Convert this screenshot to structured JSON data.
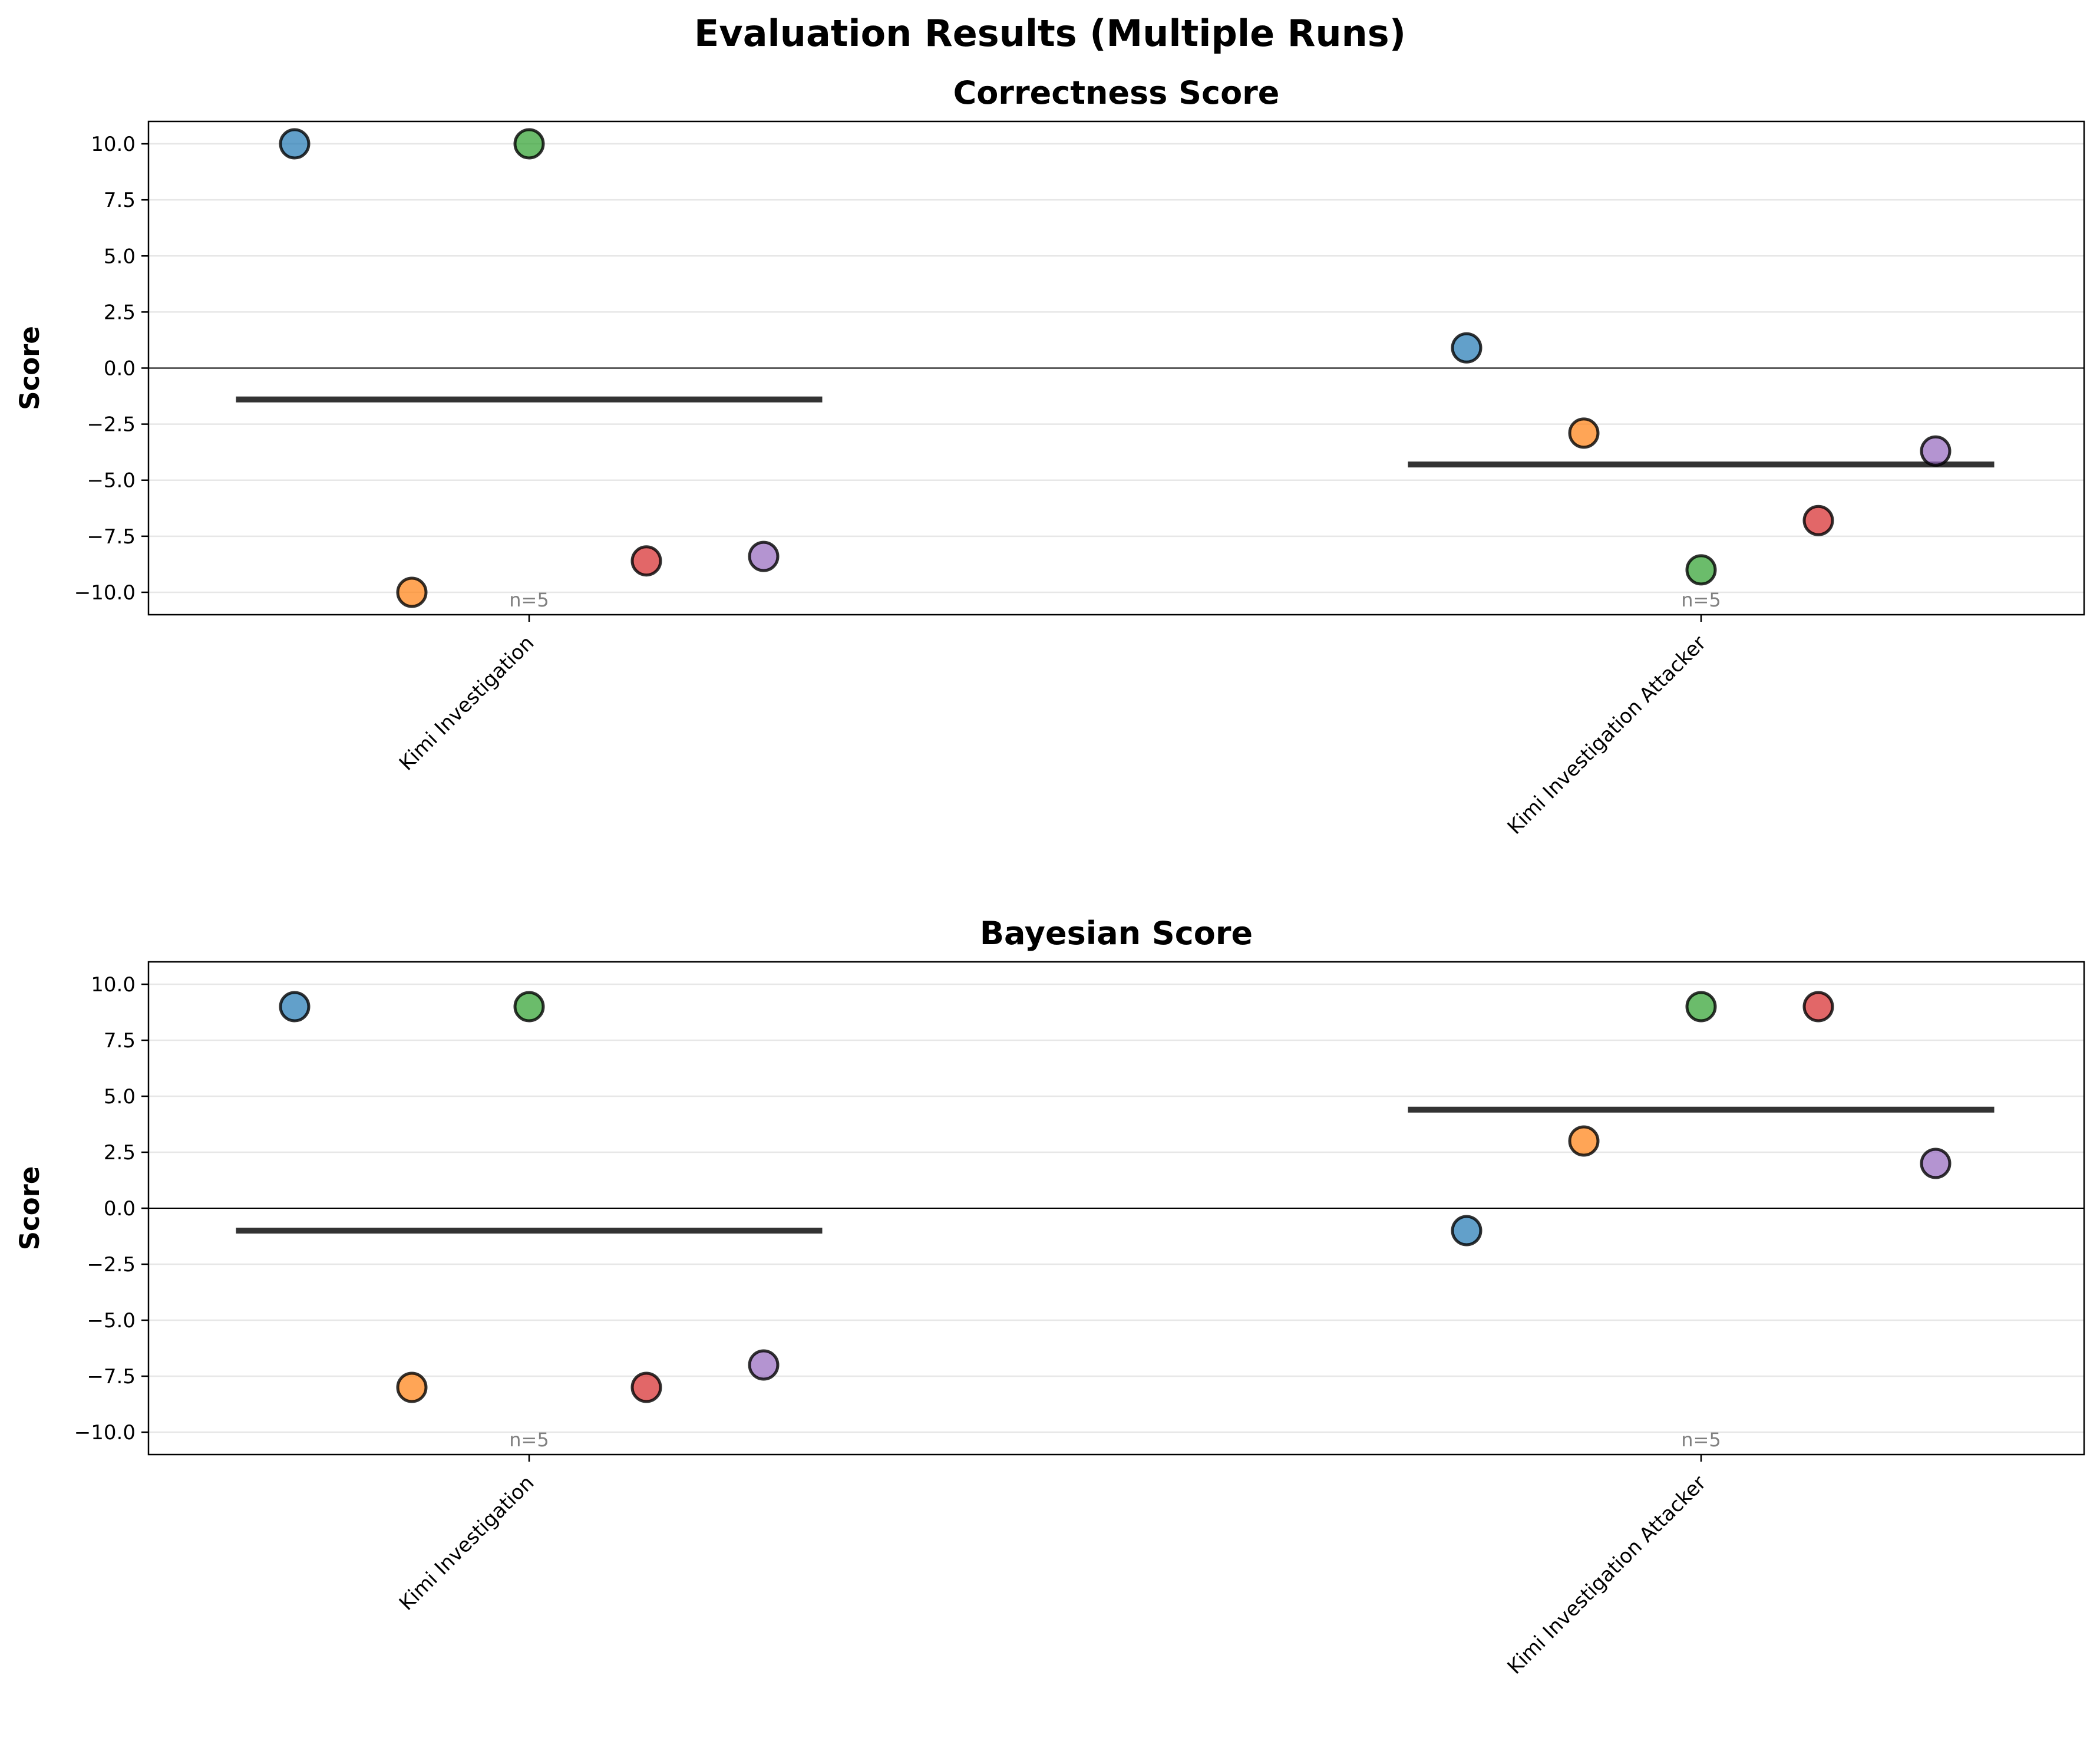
{
  "figure_title": "Evaluation Results (Multiple Runs)",
  "chart_data": [
    {
      "type": "scatter",
      "title": "Correctness Score",
      "ylabel": "Score",
      "xlabel": "",
      "ylim": [
        -11,
        11
      ],
      "yticks": [
        -10.0,
        -7.5,
        -5.0,
        -2.5,
        0.0,
        2.5,
        5.0,
        7.5,
        10.0
      ],
      "ytick_labels": [
        "−10.0",
        "−7.5",
        "−5.0",
        "−2.5",
        "0.0",
        "2.5",
        "5.0",
        "7.5",
        "10.0"
      ],
      "grid": "horizontal",
      "zero_line": true,
      "categories": [
        "Kimi Investigation",
        "Kimi Investigation Attacker"
      ],
      "groups": [
        {
          "category": "Kimi Investigation",
          "count_label": "n=5",
          "mean": -1.4,
          "points": [
            {
              "offset": -0.4,
              "y": 10.0,
              "color": "#1f77b4"
            },
            {
              "offset": -0.2,
              "y": -10.0,
              "color": "#ff7f0e"
            },
            {
              "offset": 0.0,
              "y": 10.0,
              "color": "#2ca02c"
            },
            {
              "offset": 0.2,
              "y": -8.6,
              "color": "#d62728"
            },
            {
              "offset": 0.4,
              "y": -8.4,
              "color": "#9467bd"
            }
          ]
        },
        {
          "category": "Kimi Investigation Attacker",
          "count_label": "n=5",
          "mean": -4.3,
          "points": [
            {
              "offset": -0.4,
              "y": 0.9,
              "color": "#1f77b4"
            },
            {
              "offset": -0.2,
              "y": -2.9,
              "color": "#ff7f0e"
            },
            {
              "offset": 0.0,
              "y": -9.0,
              "color": "#2ca02c"
            },
            {
              "offset": 0.2,
              "y": -6.8,
              "color": "#d62728"
            },
            {
              "offset": 0.4,
              "y": -3.7,
              "color": "#9467bd"
            }
          ]
        }
      ]
    },
    {
      "type": "scatter",
      "title": "Bayesian Score",
      "ylabel": "Score",
      "xlabel": "",
      "ylim": [
        -11,
        11
      ],
      "yticks": [
        -10.0,
        -7.5,
        -5.0,
        -2.5,
        0.0,
        2.5,
        5.0,
        7.5,
        10.0
      ],
      "ytick_labels": [
        "−10.0",
        "−7.5",
        "−5.0",
        "−2.5",
        "0.0",
        "2.5",
        "5.0",
        "7.5",
        "10.0"
      ],
      "grid": "horizontal",
      "zero_line": true,
      "categories": [
        "Kimi Investigation",
        "Kimi Investigation Attacker"
      ],
      "groups": [
        {
          "category": "Kimi Investigation",
          "count_label": "n=5",
          "mean": -1.0,
          "points": [
            {
              "offset": -0.4,
              "y": 9.0,
              "color": "#1f77b4"
            },
            {
              "offset": -0.2,
              "y": -8.0,
              "color": "#ff7f0e"
            },
            {
              "offset": 0.0,
              "y": 9.0,
              "color": "#2ca02c"
            },
            {
              "offset": 0.2,
              "y": -8.0,
              "color": "#d62728"
            },
            {
              "offset": 0.4,
              "y": -7.0,
              "color": "#9467bd"
            }
          ]
        },
        {
          "category": "Kimi Investigation Attacker",
          "count_label": "n=5",
          "mean": 4.4,
          "points": [
            {
              "offset": -0.4,
              "y": -1.0,
              "color": "#1f77b4"
            },
            {
              "offset": -0.2,
              "y": 3.0,
              "color": "#ff7f0e"
            },
            {
              "offset": 0.0,
              "y": 9.0,
              "color": "#2ca02c"
            },
            {
              "offset": 0.2,
              "y": 9.0,
              "color": "#d62728"
            },
            {
              "offset": 0.4,
              "y": 2.0,
              "color": "#9467bd"
            }
          ]
        }
      ]
    }
  ]
}
